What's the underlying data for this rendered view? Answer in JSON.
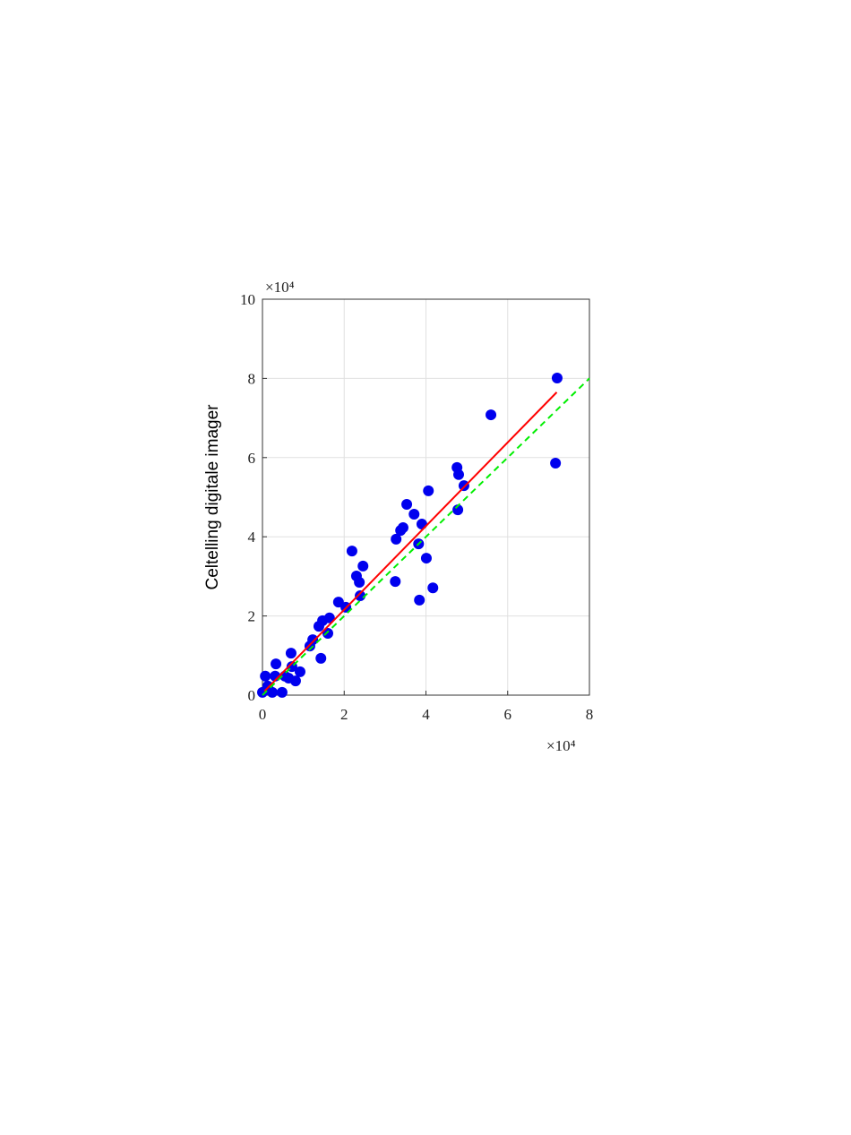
{
  "chart_data": {
    "type": "scatter",
    "ylabel": "Celtelling digitale imager",
    "x_multiplier": "×10⁴",
    "y_multiplier": "×10⁴",
    "xlim": [
      0,
      8
    ],
    "xticks": [
      0,
      2,
      4,
      6,
      8
    ],
    "ylim": [
      0,
      10
    ],
    "yticks": [
      0,
      2,
      4,
      6,
      8,
      10
    ],
    "grid": true,
    "series": [
      {
        "color": "#0000ee",
        "x": [
          0.0,
          0.07,
          0.13,
          0.24,
          0.31,
          0.33,
          0.48,
          0.55,
          0.64,
          0.7,
          0.72,
          0.81,
          0.92,
          1.16,
          1.23,
          1.43,
          1.38,
          1.47,
          1.6,
          1.64,
          1.86,
          2.04,
          2.19,
          2.3,
          2.37,
          2.39,
          2.46,
          3.25,
          3.27,
          3.38,
          3.44,
          3.53,
          3.71,
          3.82,
          3.84,
          3.9,
          4.01,
          4.06,
          4.17,
          4.76,
          4.8,
          4.78,
          4.93,
          5.59,
          7.17,
          7.21
        ],
        "values": [
          0.07,
          0.48,
          0.23,
          0.07,
          0.48,
          0.79,
          0.07,
          0.48,
          0.43,
          1.06,
          0.72,
          0.36,
          0.59,
          1.24,
          1.4,
          0.93,
          1.74,
          1.88,
          1.56,
          1.95,
          2.35,
          2.22,
          3.64,
          3.01,
          2.85,
          2.51,
          3.26,
          2.87,
          3.94,
          4.16,
          4.23,
          4.82,
          4.57,
          3.82,
          2.4,
          4.32,
          3.46,
          5.16,
          2.71,
          5.75,
          5.57,
          4.68,
          5.29,
          7.08,
          5.86,
          8.01
        ]
      }
    ],
    "lines": [
      {
        "color": "#ff0000",
        "dashed": false,
        "x": [
          0.05,
          7.2
        ],
        "values": [
          0.1,
          7.65
        ]
      },
      {
        "color": "#00ee00",
        "dashed": true,
        "x": [
          0,
          8
        ],
        "values": [
          0,
          8
        ]
      }
    ]
  }
}
